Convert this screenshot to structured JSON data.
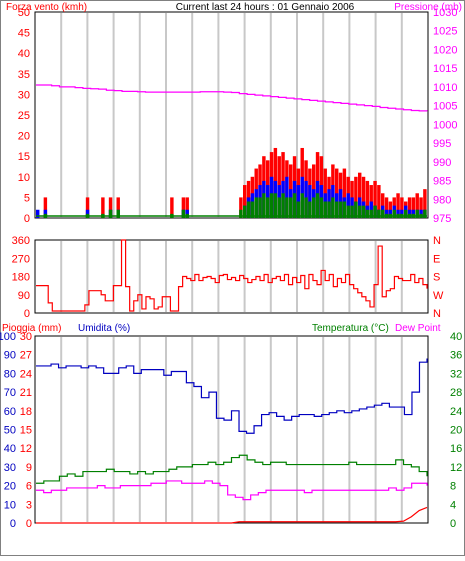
{
  "colors": {
    "background": "#ffffff",
    "plot_border": "#000000",
    "grid": "#c8c8c8",
    "frame": "#808080",
    "wind_speed": "#ff0000",
    "wind_gust": "#0000ff",
    "wind_avg": "#008000",
    "pressure": "#ff00ff",
    "direction": "#ff0000",
    "rain": "#ff0000",
    "humidity": "#0000c0",
    "temperature": "#008000",
    "dew_point": "#ff00ff"
  },
  "header": {
    "left_label": "Forza vento (kmh)",
    "center_label": "Current last 24 hours : 01 Gennaio 2006",
    "right_label": "Pressione (mb)"
  },
  "chart_data": [
    {
      "type": "bar+line",
      "name_left": "Forza vento (kmh)",
      "name_right": "Pressione (mb)",
      "x_hours": [
        0,
        24
      ],
      "ylim_left": [
        0,
        50
      ],
      "yticks_left": [
        "0",
        "5",
        "10",
        "15",
        "20",
        "25",
        "30",
        "35",
        "40",
        "45",
        "50"
      ],
      "ylim_right": [
        975,
        1030
      ],
      "yticks_right": [
        "975",
        "980",
        "985",
        "990",
        "995",
        "1000",
        "1005",
        "1010",
        "1015",
        "1020",
        "1025",
        "1030"
      ],
      "grid": true,
      "wind_speed_kmh": [
        0,
        0,
        5,
        0,
        0,
        0,
        0,
        0,
        0,
        0,
        0,
        0,
        0,
        5,
        0,
        0,
        0,
        5,
        0,
        5,
        0,
        5,
        0,
        0,
        0,
        0,
        0,
        0,
        0,
        0,
        0,
        0,
        0,
        0,
        0,
        5,
        0,
        0,
        5,
        5,
        0,
        0,
        0,
        0,
        0,
        0,
        0,
        0,
        0,
        0,
        0,
        0,
        0,
        5,
        8,
        9,
        10,
        12,
        13,
        15,
        14,
        16,
        17,
        15,
        16,
        14,
        13,
        15,
        12,
        17,
        14,
        12,
        13,
        16,
        15,
        12,
        10,
        13,
        12,
        11,
        12,
        10,
        9,
        10,
        11,
        10,
        9,
        8,
        9,
        8,
        6,
        5,
        4,
        5,
        6,
        5,
        4,
        5,
        5,
        6,
        5,
        7
      ],
      "wind_gust_kmh": [
        2,
        0,
        2,
        0,
        0,
        0,
        0,
        0,
        0,
        0,
        0,
        0,
        0,
        2,
        0,
        0,
        0,
        0,
        0,
        2,
        0,
        2,
        0,
        0,
        0,
        0,
        0,
        0,
        0,
        0,
        0,
        0,
        0,
        0,
        0,
        0,
        0,
        0,
        2,
        2,
        0,
        0,
        0,
        0,
        0,
        0,
        0,
        0,
        0,
        0,
        0,
        0,
        0,
        0,
        3,
        5,
        6,
        7,
        8,
        9,
        8,
        10,
        9,
        8,
        9,
        10,
        7,
        9,
        8,
        10,
        9,
        8,
        7,
        9,
        8,
        6,
        7,
        8,
        6,
        7,
        5,
        6,
        5,
        4,
        5,
        4,
        3,
        4,
        3,
        2,
        3,
        2,
        2,
        3,
        2,
        2,
        3,
        2,
        2,
        2,
        2,
        2
      ],
      "wind_avg_kmh": [
        0,
        0,
        1,
        0,
        0,
        0,
        0,
        0,
        0,
        0,
        0,
        0,
        0,
        1,
        0,
        0,
        0,
        1,
        0,
        2,
        0,
        2,
        0,
        0,
        0,
        0,
        0,
        0,
        0,
        0,
        0,
        0,
        0,
        0,
        0,
        1,
        0,
        0,
        2,
        1,
        0,
        0,
        0,
        0,
        0,
        0,
        0,
        0,
        0,
        0,
        0,
        0,
        0,
        2,
        3,
        4,
        4,
        5,
        5,
        6,
        5,
        6,
        6,
        5,
        6,
        5,
        5,
        6,
        4,
        6,
        5,
        4,
        5,
        6,
        5,
        4,
        4,
        5,
        4,
        4,
        4,
        3,
        3,
        4,
        3,
        3,
        2,
        2,
        3,
        2,
        2,
        1,
        1,
        2,
        1,
        1,
        2,
        1,
        1,
        2,
        1,
        2
      ],
      "pressure_mb": [
        1010.5,
        1010.5,
        1010.3,
        1010.0,
        1010.0,
        1009.8,
        1009.6,
        1009.5,
        1009.4,
        1009.1,
        1009.0,
        1008.8,
        1008.8,
        1008.7,
        1008.6,
        1008.6,
        1008.6,
        1008.6,
        1008.6,
        1008.6,
        1008.6,
        1008.7,
        1008.7,
        1008.7,
        1008.6,
        1008.5,
        1008.2,
        1008.0,
        1007.8,
        1007.6,
        1007.4,
        1007.2,
        1007.0,
        1006.8,
        1006.6,
        1006.4,
        1006.2,
        1006.0,
        1005.8,
        1005.6,
        1005.4,
        1005.2,
        1005.0,
        1004.8,
        1004.5,
        1004.3,
        1004.1,
        1003.9,
        1003.7,
        1003.6,
        1003.5
      ]
    },
    {
      "type": "line",
      "ylim": [
        0,
        360
      ],
      "yticks": [
        "0",
        "90",
        "180",
        "270",
        "360"
      ],
      "compass": [
        "N",
        "W",
        "S",
        "E",
        "N"
      ],
      "wind_direction_deg": [
        135,
        135,
        135,
        50,
        10,
        10,
        10,
        10,
        10,
        10,
        10,
        10,
        40,
        110,
        110,
        110,
        90,
        60,
        60,
        135,
        135,
        360,
        130,
        10,
        60,
        90,
        20,
        80,
        70,
        20,
        30,
        80,
        80,
        10,
        10,
        130,
        180,
        170,
        160,
        190,
        160,
        175,
        180,
        170,
        150,
        185,
        190,
        165,
        175,
        160,
        185,
        170,
        150,
        165,
        180,
        160,
        190,
        150,
        170,
        180,
        160,
        190,
        140,
        175,
        150,
        185,
        120,
        190,
        160,
        140,
        210,
        160,
        190,
        130,
        170,
        150,
        190,
        140,
        120,
        100,
        80,
        60,
        30,
        140,
        330,
        80,
        110,
        120,
        180,
        170,
        160,
        160,
        190,
        150,
        170,
        140,
        120
      ]
    },
    {
      "type": "line",
      "name_rain": "Pioggia (mm)",
      "name_humidity": "Umidita (%)",
      "name_temperature": "Temperatura (°C)",
      "name_dew_point": "Dew Point",
      "ylim_rain": [
        0,
        30
      ],
      "yticks_rain": [
        "0",
        "3",
        "6",
        "9",
        "12",
        "15",
        "18",
        "21",
        "24",
        "27",
        "30"
      ],
      "ylim_humidity": [
        0,
        100
      ],
      "yticks_humidity": [
        "0",
        "10",
        "20",
        "30",
        "40",
        "50",
        "60",
        "70",
        "80",
        "90",
        "100"
      ],
      "ylim_temp": [
        0,
        40
      ],
      "yticks_temp": [
        "0",
        "4",
        "8",
        "12",
        "16",
        "20",
        "24",
        "28",
        "32",
        "36",
        "40"
      ],
      "rain_mm": [
        0,
        0,
        0,
        0,
        0,
        0,
        0,
        0,
        0,
        0,
        0,
        0,
        0,
        0,
        0,
        0,
        0,
        0,
        0,
        0,
        0,
        0,
        0,
        0,
        0,
        0,
        0.2,
        0.2,
        0.2,
        0.2,
        0.2,
        0.2,
        0.2,
        0.2,
        0.2,
        0.2,
        0.2,
        0.2,
        0.2,
        0.2,
        0.2,
        0.2,
        0.2,
        0.2,
        0.2,
        0.2,
        0.2,
        0.3,
        1.0,
        2.0,
        2.5
      ],
      "humidity_pct": [
        84,
        84,
        85,
        83,
        84,
        84,
        83,
        84,
        83,
        80,
        80,
        83,
        84,
        80,
        82,
        82,
        82,
        79,
        81,
        81,
        75,
        73,
        67,
        70,
        56,
        55,
        60,
        49,
        48,
        52,
        58,
        59,
        57,
        55,
        57,
        58,
        58,
        57,
        58,
        59,
        60,
        59,
        60,
        61,
        62,
        63,
        64,
        62,
        62,
        58,
        70,
        86,
        88
      ],
      "temperature_c": [
        8.5,
        9,
        9,
        10,
        10.5,
        10,
        11,
        11,
        11,
        11.5,
        11,
        11,
        10.5,
        11,
        10.5,
        11,
        11,
        11.5,
        12,
        12,
        12.5,
        12.5,
        13,
        12.5,
        13,
        14,
        14.5,
        13.5,
        13,
        12.5,
        13,
        13,
        12.5,
        12.5,
        12.5,
        12.5,
        12.5,
        12.5,
        12.5,
        12.5,
        13,
        12.5,
        12.5,
        12.5,
        12.5,
        12.5,
        13.5,
        12.5,
        12,
        11,
        10
      ],
      "dew_point_c": [
        7,
        6.5,
        7,
        7,
        7.5,
        7.5,
        7.5,
        7.5,
        8,
        7.5,
        7.5,
        8,
        8,
        8,
        8,
        8.5,
        8.5,
        9,
        9,
        8.5,
        8.5,
        8.5,
        9,
        8.5,
        8,
        6,
        5.5,
        5,
        6,
        6.5,
        7,
        7,
        7,
        7,
        7,
        6.5,
        7,
        7,
        7,
        7,
        7,
        7,
        7,
        7,
        7,
        7,
        7.5,
        7,
        7.5,
        8.5,
        8.5,
        8
      ]
    }
  ],
  "panel3_labels": {
    "rain": "Pioggia (mm)",
    "humidity": "Umidita (%)",
    "temperature": "Temperatura (°C)",
    "dew_point": "Dew Point"
  }
}
